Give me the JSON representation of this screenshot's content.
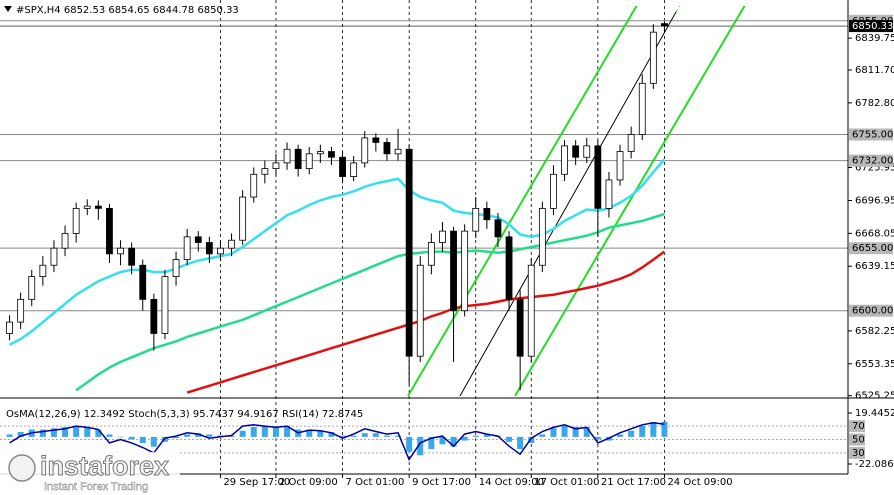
{
  "watermark": {
    "brand": "instaforex",
    "tagline": "Instant Forex Trading"
  },
  "chart_data": [
    {
      "type": "candlestick",
      "title": "#SPX,H4  6852.53 6854.65 6844.78 6850.33",
      "categories": [
        null,
        null,
        null,
        null,
        null,
        null,
        null,
        null,
        null,
        null,
        null,
        null,
        null,
        null,
        null,
        null,
        null,
        null,
        null,
        "29 Sep 17:00",
        null,
        null,
        null,
        null,
        "2 Oct 09:00",
        null,
        null,
        null,
        null,
        null,
        "7 Oct 01:00",
        null,
        null,
        null,
        null,
        null,
        "9 Oct 17:00",
        null,
        null,
        null,
        null,
        null,
        "14 Oct 09:00",
        null,
        null,
        null,
        null,
        "17 Oct 01:00",
        null,
        null,
        null,
        null,
        null,
        "21 Oct 17:00",
        null,
        null,
        null,
        null,
        null,
        "24 Oct 09:00"
      ],
      "open": [
        6580,
        6590,
        6610,
        6630,
        6640,
        6655,
        6668,
        6690,
        6692,
        6690,
        6650,
        6655,
        6640,
        6610,
        6580,
        6630,
        6645,
        6665,
        6660,
        6650,
        6655,
        6662,
        6700,
        6720,
        6725,
        6730,
        6742,
        6725,
        6738,
        6740,
        6735,
        6718,
        6730,
        6752,
        6748,
        6738,
        6742,
        6560,
        6640,
        6660,
        6670,
        6600,
        6670,
        6690,
        6680,
        6665,
        6610,
        6560,
        6640,
        6690,
        6720,
        6745,
        6735,
        6745,
        6690,
        6715,
        6740,
        6755,
        6800,
        6852.53
      ],
      "high": [
        6596,
        6616,
        6636,
        6648,
        6662,
        6675,
        6695,
        6698,
        6697,
        6694,
        6662,
        6660,
        6645,
        6615,
        6636,
        6652,
        6672,
        6670,
        6665,
        6662,
        6668,
        6706,
        6726,
        6732,
        6738,
        6748,
        6746,
        6744,
        6746,
        6744,
        6740,
        6736,
        6758,
        6756,
        6752,
        6760,
        6746,
        6648,
        6668,
        6678,
        6674,
        6676,
        6700,
        6696,
        6686,
        6670,
        6618,
        6646,
        6696,
        6728,
        6750,
        6750,
        6752,
        6750,
        6722,
        6746,
        6762,
        6808,
        6852,
        6854.65
      ],
      "low": [
        6574,
        6584,
        6604,
        6622,
        6634,
        6648,
        6660,
        6684,
        6680,
        6642,
        6640,
        6632,
        6600,
        6565,
        6575,
        6622,
        6640,
        6652,
        6642,
        6644,
        6648,
        6658,
        6695,
        6712,
        6718,
        6724,
        6718,
        6720,
        6730,
        6728,
        6712,
        6714,
        6726,
        6740,
        6732,
        6732,
        6535,
        6555,
        6632,
        6652,
        6555,
        6595,
        6664,
        6672,
        6656,
        6600,
        6530,
        6555,
        6634,
        6684,
        6714,
        6728,
        6730,
        6665,
        6682,
        6710,
        6734,
        6750,
        6795,
        6844.78
      ],
      "close": [
        6590,
        6610,
        6630,
        6640,
        6655,
        6668,
        6690,
        6692,
        6690,
        6650,
        6655,
        6640,
        6610,
        6580,
        6630,
        6645,
        6665,
        6660,
        6650,
        6655,
        6662,
        6700,
        6720,
        6725,
        6730,
        6742,
        6725,
        6738,
        6740,
        6735,
        6718,
        6730,
        6752,
        6748,
        6738,
        6742,
        6560,
        6640,
        6660,
        6670,
        6600,
        6670,
        6690,
        6680,
        6665,
        6610,
        6560,
        6640,
        6690,
        6720,
        6745,
        6735,
        6745,
        6690,
        6715,
        6740,
        6755,
        6800,
        6845,
        6850.33
      ],
      "up_color": "#ffffff",
      "down_color": "#000000",
      "series": [
        {
          "color": "#33e0f0",
          "values": [
            6570,
            6575,
            6582,
            6590,
            6598,
            6606,
            6614,
            6620,
            6626,
            6630,
            6634,
            6636,
            6636,
            6634,
            6634,
            6637,
            6641,
            6644,
            6646,
            6648,
            6650,
            6656,
            6663,
            6670,
            6677,
            6684,
            6688,
            6693,
            6697,
            6700,
            6702,
            6705,
            6709,
            6712,
            6714,
            6716,
            6706,
            6700,
            6697,
            6695,
            6688,
            6686,
            6685,
            6684,
            6682,
            6676,
            6667,
            6665,
            6667,
            6672,
            6679,
            6684,
            6689,
            6688,
            6690,
            6695,
            6701,
            6710,
            6722,
            6733
          ]
        },
        {
          "color": "#22dd88",
          "values": [
            null,
            null,
            null,
            null,
            null,
            null,
            6530,
            6537,
            6544,
            6550,
            6555,
            6559,
            6563,
            6567,
            6570,
            6573,
            6577,
            6580,
            6583,
            6586,
            6589,
            6592,
            6596,
            6600,
            6604,
            6608,
            6612,
            6616,
            6620,
            6624,
            6628,
            6632,
            6636,
            6640,
            6644,
            6648,
            6650,
            6651,
            6652,
            6652,
            6651,
            6652,
            6653,
            6652,
            6651,
            6652,
            6654,
            6656,
            6658,
            6660,
            6662,
            6664,
            6666,
            6669,
            6673,
            6675,
            6677,
            6679,
            6682,
            6685
          ]
        },
        {
          "color": "#e01010",
          "values": [
            null,
            null,
            null,
            null,
            null,
            null,
            null,
            null,
            null,
            null,
            null,
            null,
            null,
            null,
            null,
            null,
            6528,
            6531,
            6534,
            6537,
            6540,
            6543,
            6546,
            6549,
            6552,
            6555,
            6558,
            6561,
            6564,
            6567,
            6570,
            6573,
            6576,
            6579,
            6582,
            6585,
            6588,
            6591,
            6595,
            6598,
            6602,
            6604,
            6605,
            6606,
            6608,
            6610,
            6611,
            6612,
            6613,
            6614,
            6616,
            6618,
            6620,
            6622,
            6625,
            6628,
            6632,
            6638,
            6645,
            6652
          ]
        }
      ],
      "ylim": [
        6525,
        6868
      ],
      "yticks": [
        6839.75,
        {
          "value": 6811.7,
          "label": "6811.70"
        },
        {
          "value": 6782.8,
          "label": "6782.80"
        },
        6725.95,
        6696.95,
        6668.05,
        6639.15,
        6582.25,
        6553.35,
        6525.25
      ],
      "levels": [
        {
          "value": 6855,
          "label": "6855.00"
        },
        {
          "value": 6755,
          "label": "6755.00"
        },
        {
          "value": 6732,
          "label": "6732.00"
        },
        {
          "value": 6655,
          "label": "6655.00"
        },
        {
          "value": 6600,
          "label": "6600.00"
        }
      ],
      "last_price": 6850.33,
      "grid": true
    },
    {
      "type": "bar",
      "title": "OsMA(12,26,9) 12.3492  Stoch(5,3,3) 95.7437 94.9167  RSI(14) 72.8745",
      "color": "#3aa8e8",
      "values": [
        2,
        4,
        6,
        6,
        7,
        8,
        9,
        8,
        6,
        2,
        0,
        -2,
        -5,
        -8,
        -4,
        -1,
        2,
        3,
        2,
        1,
        1,
        5,
        8,
        9,
        8,
        9,
        6,
        6,
        5,
        4,
        1,
        1,
        3,
        3,
        1,
        1,
        -12,
        -15,
        -10,
        -6,
        -8,
        -3,
        1,
        2,
        1,
        -4,
        -10,
        -5,
        2,
        7,
        9,
        8,
        8,
        -2,
        -3,
        2,
        5,
        9,
        12,
        12.3492
      ],
      "ylim": [
        -22.0865,
        19.4452
      ],
      "yticks": [
        19.4452,
        -22.0865
      ],
      "series": [
        {
          "color": "#0000a0",
          "axis": "y2",
          "values": [
            45,
            55,
            60,
            62,
            64,
            66,
            70,
            68,
            65,
            45,
            50,
            45,
            38,
            30,
            52,
            55,
            60,
            58,
            52,
            54,
            56,
            70,
            72,
            70,
            68,
            70,
            60,
            64,
            63,
            60,
            52,
            58,
            66,
            62,
            58,
            60,
            20,
            45,
            52,
            55,
            40,
            58,
            62,
            58,
            55,
            40,
            28,
            52,
            62,
            68,
            72,
            66,
            68,
            45,
            52,
            60,
            66,
            72,
            75,
            72.8745
          ]
        }
      ],
      "y2lim": [
        0,
        100
      ],
      "y2ticks": [
        70,
        50,
        30
      ]
    }
  ]
}
